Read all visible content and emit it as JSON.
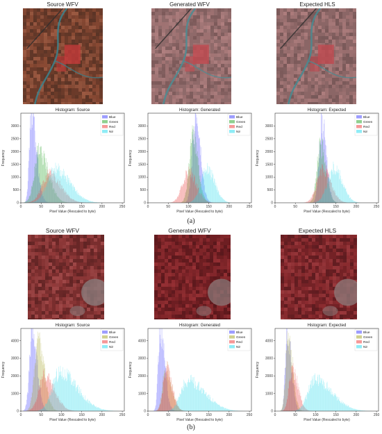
{
  "panels": [
    {
      "label": "(a)",
      "images": [
        {
          "title": "Source WFV",
          "palette": [
            "#6b3b2a",
            "#8a4a34",
            "#5a3426",
            "#9c5a42"
          ],
          "river": "#3f7f88",
          "field": "#c23a3a"
        },
        {
          "title": "Generated WFV",
          "palette": [
            "#8f6a6a",
            "#a27474",
            "#7c5a5a",
            "#b08080"
          ],
          "river": "#4f8c92",
          "field": "#c24a50"
        },
        {
          "title": "Expected HLS",
          "palette": [
            "#8b6666",
            "#9e7272",
            "#785858",
            "#ad7d7d"
          ],
          "river": "#4a8a90",
          "field": "#c04a50"
        }
      ]
    },
    {
      "label": "(b)",
      "images": [
        {
          "title": "Source WFV",
          "palette": [
            "#7a2e2e",
            "#923a3a",
            "#612424",
            "#a04848"
          ],
          "gray": "#8a8080"
        },
        {
          "title": "Generated WFV",
          "palette": [
            "#6e1e22",
            "#86282c",
            "#5a181c",
            "#963034"
          ],
          "gray": "#8a7878"
        },
        {
          "title": "Expected HLS",
          "palette": [
            "#742226",
            "#8c2c30",
            "#5e1c20",
            "#9a383c"
          ],
          "gray": "#8e7c7c"
        }
      ]
    }
  ],
  "chart_data": [
    {
      "type": "histogram",
      "title": "Histogram: Source",
      "xlabel": "Pixel Value (Rescaled to byte)",
      "ylabel": "Frequency",
      "xlim": [
        0,
        255
      ],
      "ylim": [
        0,
        3500
      ],
      "xticks": [
        0,
        50,
        100,
        150,
        200,
        250
      ],
      "yticks": [
        0,
        500,
        1000,
        1500,
        2000,
        2500,
        3000
      ],
      "series": [
        {
          "name": "Blue",
          "color": "#4c4cff",
          "peak": 3400,
          "mu": 25,
          "sigma": 5,
          "skew": 8
        },
        {
          "name": "Green",
          "color": "#33aa33",
          "peak": 2000,
          "mu": 45,
          "sigma": 12,
          "skew": 10
        },
        {
          "name": "Red",
          "color": "#ee4444",
          "peak": 1100,
          "mu": 70,
          "sigma": 18,
          "skew": 10
        },
        {
          "name": "Nir",
          "color": "#33ddee",
          "peak": 1300,
          "mu": 85,
          "sigma": 20,
          "skew": 15
        }
      ]
    },
    {
      "type": "histogram",
      "title": "Histogram: Generated",
      "xlabel": "Pixel Value (Rescaled to byte)",
      "ylabel": "Frequency",
      "xlim": [
        0,
        255
      ],
      "ylim": [
        0,
        3500
      ],
      "xticks": [
        0,
        50,
        100,
        150,
        200,
        250
      ],
      "yticks": [
        0,
        500,
        1000,
        1500,
        2000,
        2500,
        3000
      ],
      "series": [
        {
          "name": "Blue",
          "color": "#4c4cff",
          "peak": 3300,
          "mu": 117,
          "sigma": 8,
          "skew": 4
        },
        {
          "name": "Green",
          "color": "#33aa33",
          "peak": 2600,
          "mu": 110,
          "sigma": 9,
          "skew": 4
        },
        {
          "name": "Red",
          "color": "#ee4444",
          "peak": 1200,
          "mu": 100,
          "sigma": 15,
          "skew": 4
        },
        {
          "name": "Nir",
          "color": "#33ddee",
          "peak": 1300,
          "mu": 145,
          "sigma": 15,
          "skew": 4
        }
      ]
    },
    {
      "type": "histogram",
      "title": "Histogram: Expected",
      "xlabel": "Pixel Value (Rescaled to byte)",
      "ylabel": "Frequency",
      "xlim": [
        0,
        255
      ],
      "ylim": [
        0,
        3500
      ],
      "xticks": [
        0,
        50,
        100,
        150,
        200,
        250
      ],
      "yticks": [
        0,
        500,
        1000,
        1500,
        2000,
        2500,
        3000
      ],
      "series": [
        {
          "name": "Blue",
          "color": "#4c4cff",
          "peak": 3100,
          "mu": 115,
          "sigma": 7,
          "skew": 4
        },
        {
          "name": "Green",
          "color": "#33aa33",
          "peak": 2200,
          "mu": 112,
          "sigma": 9,
          "skew": 4
        },
        {
          "name": "Red",
          "color": "#ee4444",
          "peak": 1300,
          "mu": 118,
          "sigma": 15,
          "skew": 4
        },
        {
          "name": "Nir",
          "color": "#33ddee",
          "peak": 1400,
          "mu": 145,
          "sigma": 16,
          "skew": 4
        }
      ]
    },
    {
      "type": "histogram",
      "title": "Histogram: Source",
      "xlabel": "Pixel Value (Rescaled to byte)",
      "ylabel": "Frequency",
      "xlim": [
        0,
        255
      ],
      "ylim": [
        0,
        4700
      ],
      "xticks": [
        0,
        50,
        100,
        150,
        200,
        250
      ],
      "yticks": [
        0,
        1000,
        2000,
        3000,
        4000
      ],
      "series": [
        {
          "name": "Blue",
          "color": "#4c4cff",
          "peak": 4400,
          "mu": 28,
          "sigma": 7,
          "skew": 5
        },
        {
          "name": "Green",
          "color": "#aaaa33",
          "peak": 4000,
          "mu": 42,
          "sigma": 9,
          "skew": 6
        },
        {
          "name": "Red",
          "color": "#ee4444",
          "peak": 2000,
          "mu": 58,
          "sigma": 14,
          "skew": 10
        },
        {
          "name": "Nir",
          "color": "#33ddee",
          "peak": 2200,
          "mu": 95,
          "sigma": 18,
          "skew": 25
        }
      ]
    },
    {
      "type": "histogram",
      "title": "Histogram: Generated",
      "xlabel": "Pixel Value (Rescaled to byte)",
      "ylabel": "Frequency",
      "xlim": [
        0,
        255
      ],
      "ylim": [
        0,
        4700
      ],
      "xticks": [
        0,
        50,
        100,
        150,
        200,
        250
      ],
      "yticks": [
        0,
        1000,
        2000,
        3000,
        4000
      ],
      "series": [
        {
          "name": "Blue",
          "color": "#4c4cff",
          "peak": 4600,
          "mu": 30,
          "sigma": 5,
          "skew": 6
        },
        {
          "name": "Green",
          "color": "#aaaa33",
          "peak": 2400,
          "mu": 44,
          "sigma": 8,
          "skew": 6
        },
        {
          "name": "Red",
          "color": "#ee4444",
          "peak": 2400,
          "mu": 45,
          "sigma": 8,
          "skew": 6
        },
        {
          "name": "Nir",
          "color": "#33ddee",
          "peak": 1750,
          "mu": 98,
          "sigma": 17,
          "skew": 25
        }
      ]
    },
    {
      "type": "histogram",
      "title": "Histogram: Expected",
      "xlabel": "Pixel Value (Rescaled to byte)",
      "ylabel": "Frequency",
      "xlim": [
        0,
        255
      ],
      "ylim": [
        0,
        4700
      ],
      "xticks": [
        0,
        50,
        100,
        150,
        200,
        250
      ],
      "yticks": [
        0,
        1000,
        2000,
        3000,
        4000
      ],
      "series": [
        {
          "name": "Blue",
          "color": "#4c4cff",
          "peak": 4500,
          "mu": 30,
          "sigma": 5,
          "skew": 5
        },
        {
          "name": "Green",
          "color": "#aaaa33",
          "peak": 4300,
          "mu": 32,
          "sigma": 6,
          "skew": 5
        },
        {
          "name": "Red",
          "color": "#ee4444",
          "peak": 2400,
          "mu": 42,
          "sigma": 8,
          "skew": 6
        },
        {
          "name": "Nir",
          "color": "#33ddee",
          "peak": 1800,
          "mu": 98,
          "sigma": 17,
          "skew": 25
        }
      ]
    }
  ]
}
